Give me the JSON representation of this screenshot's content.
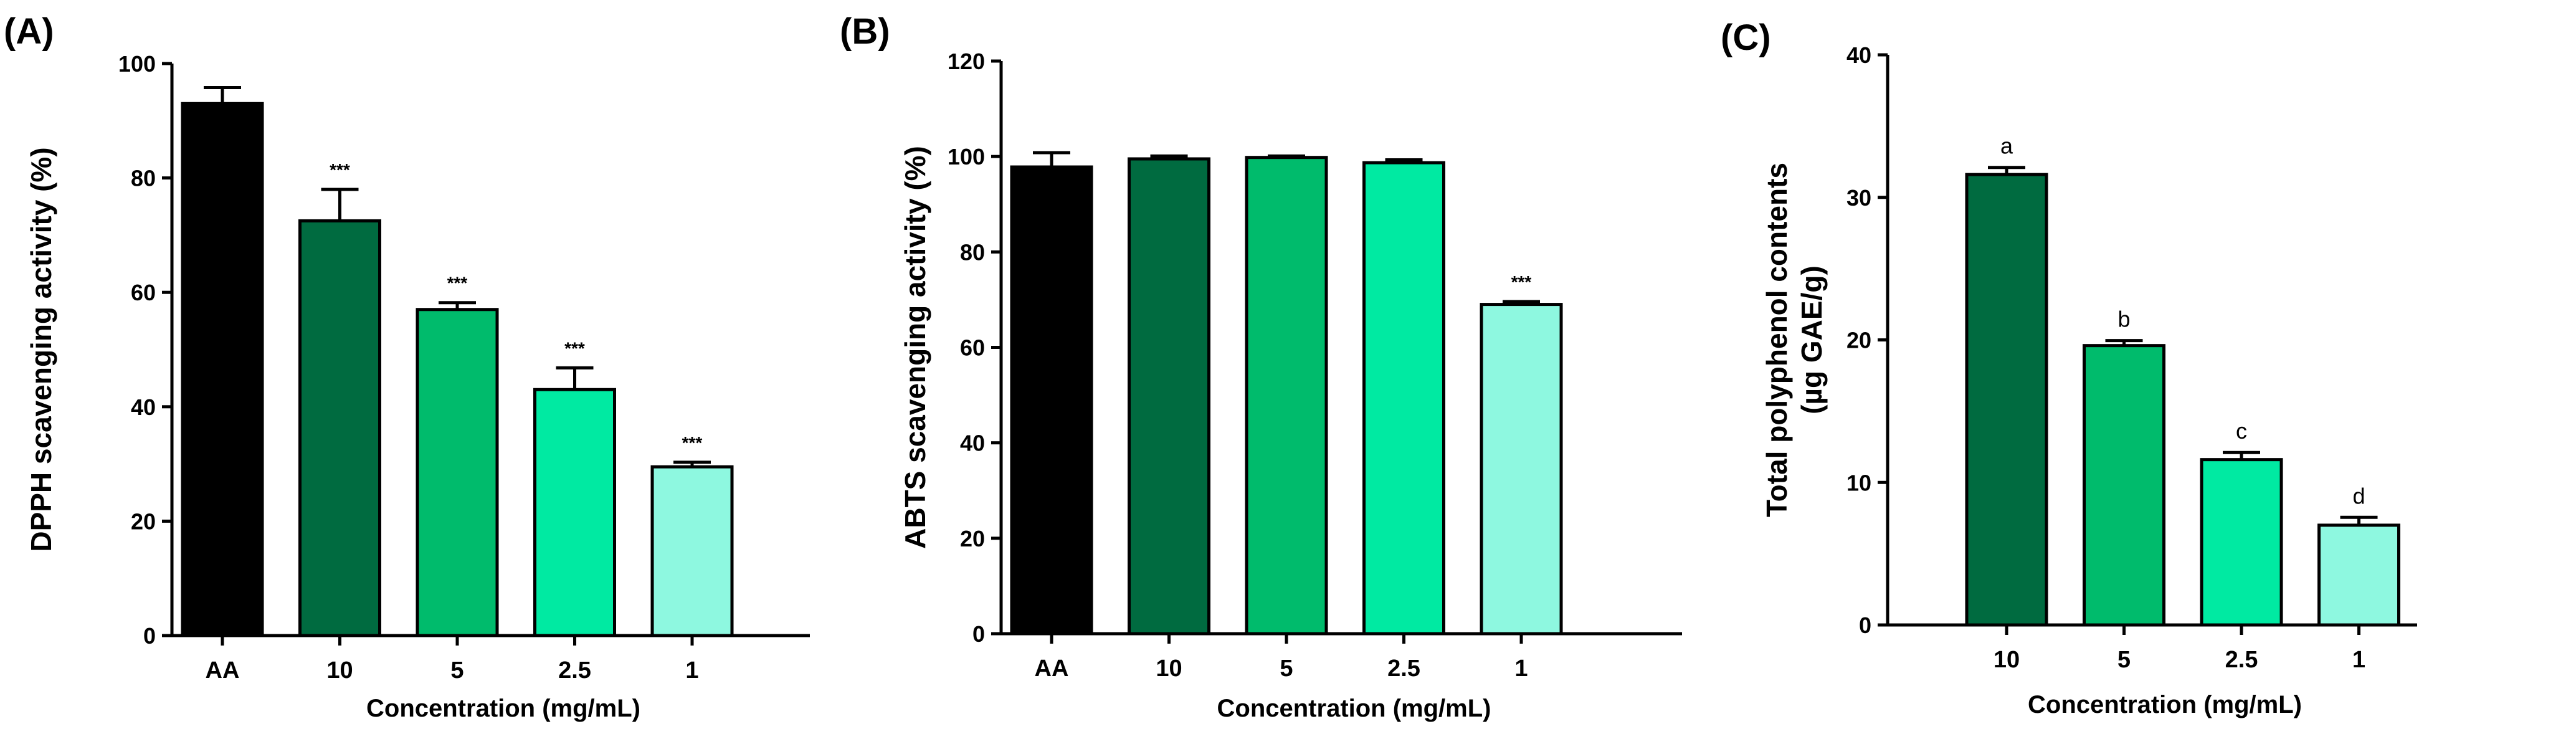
{
  "chart_data": [
    {
      "panel": "(A)",
      "type": "bar",
      "categories": [
        "AA",
        "10",
        "5",
        "2.5",
        "1"
      ],
      "values": [
        93,
        72.5,
        57,
        43,
        29.5
      ],
      "errors": [
        2.8,
        5.5,
        1.2,
        3.8,
        0.8
      ],
      "annotations": [
        "",
        "***",
        "***",
        "***",
        "***"
      ],
      "colors": [
        "#000000",
        "#006b40",
        "#00bb6c",
        "#00eaa2",
        "#8ef8e0"
      ],
      "title": "",
      "xlabel": "Concentration  (mg/mL)",
      "ylabel": "DPPH scavenging activity (%)",
      "ylim": [
        0,
        100
      ],
      "yticks": [
        0,
        20,
        40,
        60,
        80,
        100
      ]
    },
    {
      "panel": "(B)",
      "type": "bar",
      "categories": [
        "AA",
        "10",
        "5",
        "2.5",
        "1"
      ],
      "values": [
        97.8,
        99.5,
        99.8,
        98.7,
        69
      ],
      "errors": [
        3.0,
        0.6,
        0.3,
        0.6,
        0.6
      ],
      "annotations": [
        "",
        "",
        "",
        "",
        "***"
      ],
      "colors": [
        "#000000",
        "#006b40",
        "#00bb6c",
        "#00eaa2",
        "#8ef8e0"
      ],
      "title": "",
      "xlabel": "Concentration  (mg/mL)",
      "ylabel": "ABTS scavenging activity (%)",
      "ylim": [
        0,
        120
      ],
      "yticks": [
        0,
        20,
        40,
        60,
        80,
        100,
        120
      ]
    },
    {
      "panel": "(C)",
      "type": "bar",
      "categories": [
        "10",
        "5",
        "2.5",
        "1"
      ],
      "values": [
        31.6,
        19.6,
        11.6,
        7.0
      ],
      "errors": [
        0.5,
        0.35,
        0.5,
        0.55
      ],
      "annotations": [
        "a",
        "b",
        "c",
        "d"
      ],
      "colors": [
        "#006b40",
        "#00bb6c",
        "#00eaa2",
        "#8ef8e0"
      ],
      "title": "",
      "xlabel": "Concentration  (mg/mL)",
      "ylabel": [
        "Total polyphenol contents",
        "(µg GAE/g)"
      ],
      "ylim": [
        0,
        40
      ],
      "yticks": [
        0,
        10,
        20,
        30,
        40
      ]
    }
  ]
}
